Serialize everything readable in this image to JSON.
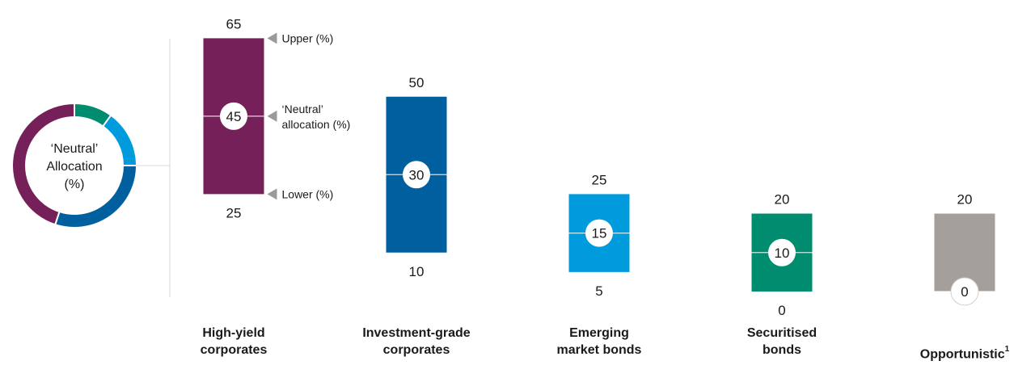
{
  "chart_data": {
    "type": "range-bar",
    "donut_label_lines": [
      "‘Neutral’",
      "Allocation",
      "(%)"
    ],
    "legend": {
      "upper": "Upper (%)",
      "neutral_lines": [
        "‘Neutral’",
        "allocation (%)"
      ],
      "lower": "Lower (%)"
    },
    "categories": [
      {
        "name_lines": [
          "High-yield",
          "corporates"
        ],
        "footnote": "",
        "lower": 25,
        "neutral": 45,
        "upper": 65,
        "color": "#76205a"
      },
      {
        "name_lines": [
          "Investment-grade",
          "corporates"
        ],
        "footnote": "",
        "lower": 10,
        "neutral": 30,
        "upper": 50,
        "color": "#005f9e"
      },
      {
        "name_lines": [
          "Emerging",
          "market bonds"
        ],
        "footnote": "",
        "lower": 5,
        "neutral": 15,
        "upper": 25,
        "color": "#009bdd"
      },
      {
        "name_lines": [
          "Securitised",
          "bonds"
        ],
        "footnote": "",
        "lower": 0,
        "neutral": 10,
        "upper": 20,
        "color": "#008c6e"
      },
      {
        "name_lines": [
          "Opportunistic"
        ],
        "footnote": "1",
        "lower": 0,
        "neutral": 0,
        "upper": 20,
        "color": "#a49f9a"
      }
    ]
  }
}
